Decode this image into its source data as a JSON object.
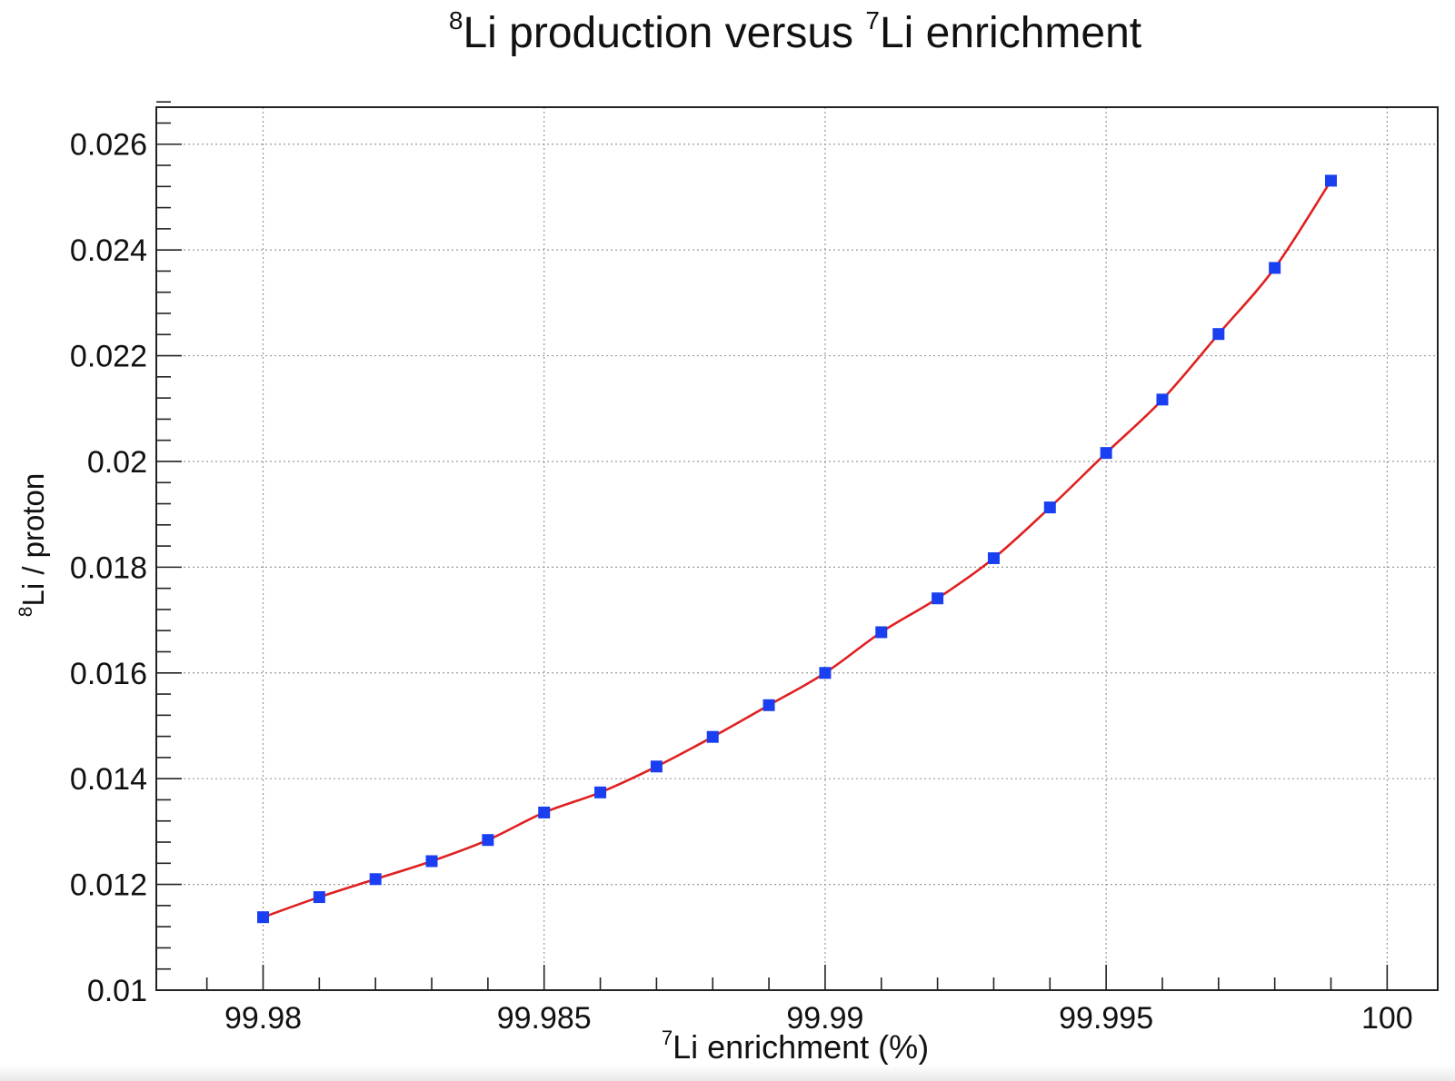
{
  "chart_data": {
    "type": "scatter",
    "title": {
      "sup1": "8",
      "part1": "Li production versus ",
      "sup2": "7",
      "part2": "Li enrichment"
    },
    "xlabel": {
      "sup": "7",
      "text": "Li enrichment (%)"
    },
    "ylabel": {
      "sup": "8",
      "text": "Li / proton"
    },
    "xlim": [
      99.9781,
      100.0009
    ],
    "ylim": [
      0.01,
      0.0267
    ],
    "x_ticks": [
      {
        "value": 99.98,
        "label": "99.98"
      },
      {
        "value": 99.985,
        "label": "99.985"
      },
      {
        "value": 99.99,
        "label": "99.99"
      },
      {
        "value": 99.995,
        "label": "99.995"
      },
      {
        "value": 100,
        "label": "100"
      }
    ],
    "y_ticks": [
      {
        "value": 0.01,
        "label": "0.01"
      },
      {
        "value": 0.012,
        "label": "0.012"
      },
      {
        "value": 0.014,
        "label": "0.014"
      },
      {
        "value": 0.016,
        "label": "0.016"
      },
      {
        "value": 0.018,
        "label": "0.018"
      },
      {
        "value": 0.02,
        "label": "0.02"
      },
      {
        "value": 0.022,
        "label": "0.022"
      },
      {
        "value": 0.024,
        "label": "0.024"
      },
      {
        "value": 0.026,
        "label": "0.026"
      }
    ],
    "grid": true,
    "series": [
      {
        "marker_color": "#1a3ff0",
        "line_color": "#e02020",
        "x": [
          99.98,
          99.981,
          99.982,
          99.983,
          99.984,
          99.985,
          99.986,
          99.987,
          99.988,
          99.989,
          99.99,
          99.991,
          99.992,
          99.993,
          99.994,
          99.995,
          99.996,
          99.997,
          99.998,
          99.999
        ],
        "y": [
          0.01138,
          0.01176,
          0.0121,
          0.01244,
          0.01284,
          0.01336,
          0.01374,
          0.01423,
          0.01479,
          0.01539,
          0.016,
          0.01677,
          0.01741,
          0.01817,
          0.01913,
          0.02016,
          0.02117,
          0.02241,
          0.02366,
          0.02531
        ]
      }
    ]
  }
}
